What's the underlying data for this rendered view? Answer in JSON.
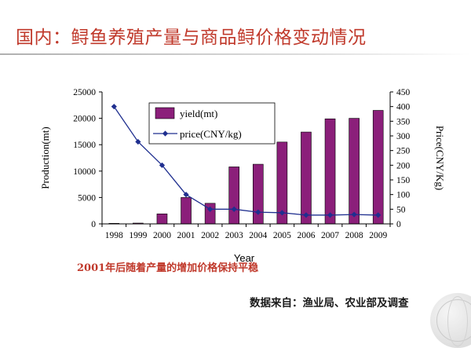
{
  "slide": {
    "title": "国内：鲟鱼养殖产量与商品鲟价格变动情况",
    "note": "2001年后随着产量的增加价格保持平稳",
    "source": "数据来自：渔业局、农业部及调查"
  },
  "chart_data": {
    "type": "bar+line",
    "categories": [
      "1998",
      "1999",
      "2000",
      "2001",
      "2002",
      "2003",
      "2004",
      "2005",
      "2006",
      "2007",
      "2008",
      "2009"
    ],
    "series": [
      {
        "name": "yield(mt)",
        "type": "bar",
        "axis": "left",
        "values": [
          100,
          150,
          1900,
          5000,
          3900,
          10800,
          11300,
          15500,
          17400,
          19900,
          20000,
          21500
        ],
        "color": "#8b1f7a"
      },
      {
        "name": "price(CNY/kg)",
        "type": "line",
        "axis": "right",
        "values": [
          400,
          280,
          200,
          100,
          50,
          50,
          40,
          38,
          30,
          30,
          32,
          30
        ],
        "color": "#1f2f8f"
      }
    ],
    "xlabel": "Year",
    "ylabel_left": "Production(mt)",
    "ylabel_right": "Price(CNY/Kg)",
    "ylim_left": [
      0,
      25000
    ],
    "ylim_right": [
      0,
      450
    ],
    "yticks_left": [
      0,
      5000,
      10000,
      15000,
      20000,
      25000
    ],
    "yticks_right": [
      0,
      50,
      100,
      150,
      200,
      250,
      300,
      350,
      400,
      450
    ],
    "legend": "top-center",
    "grid": false
  }
}
